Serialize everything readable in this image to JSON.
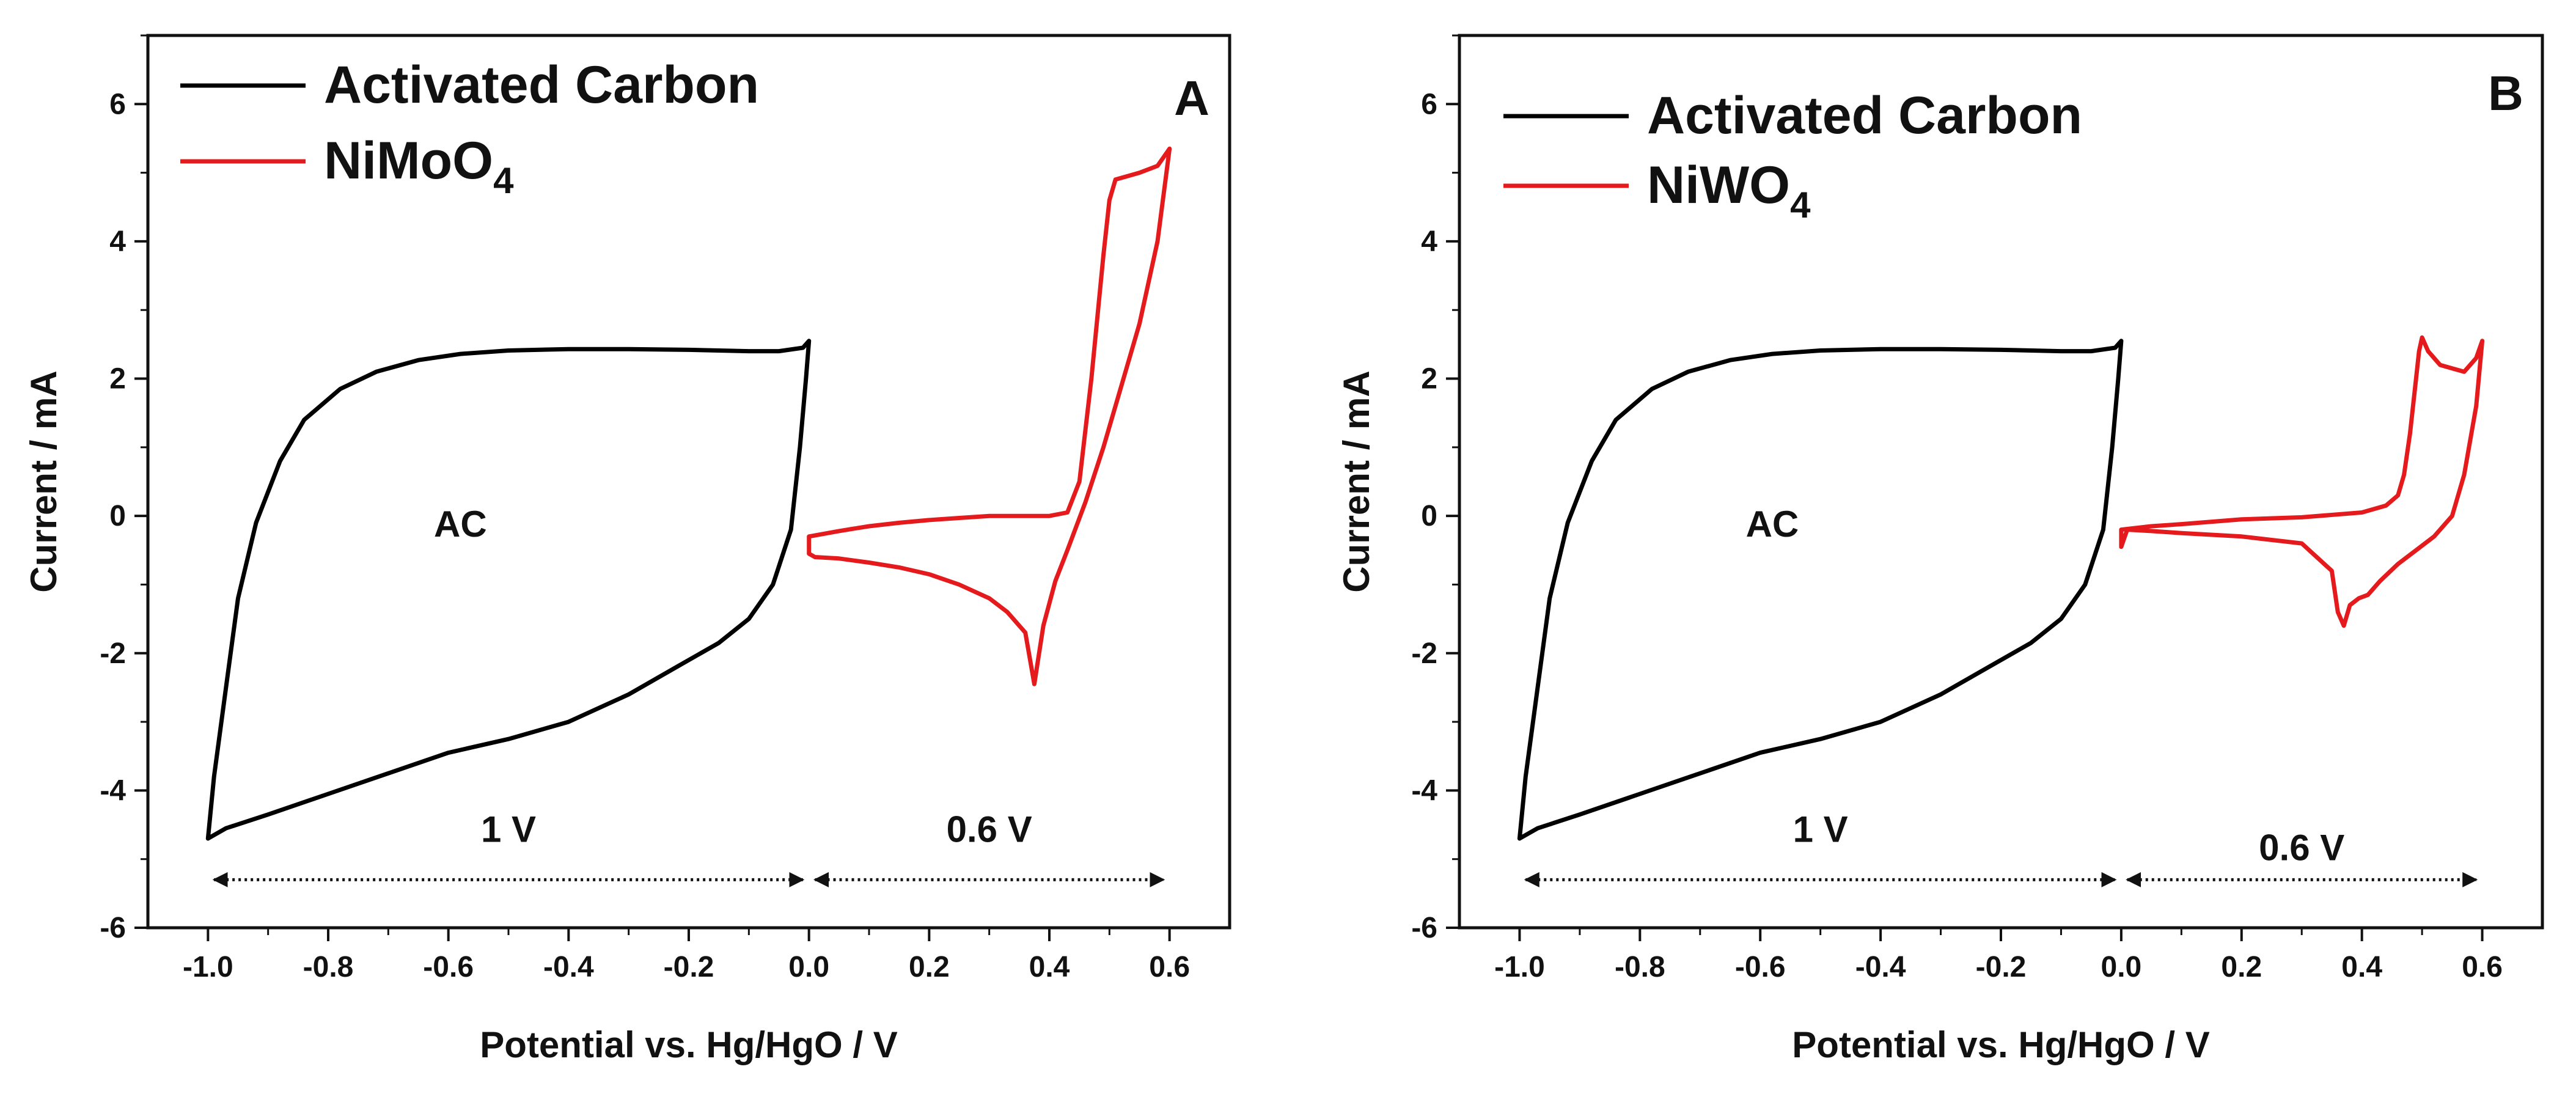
{
  "chart_data": [
    {
      "type": "line",
      "panel_label": "A",
      "xlabel": "Potential vs. Hg/HgO / V",
      "ylabel": "Current / mA",
      "xlim": [
        -1.1,
        0.7
      ],
      "ylim": [
        -6,
        7
      ],
      "xticks": [
        -1.0,
        -0.8,
        -0.6,
        -0.4,
        -0.2,
        0.0,
        0.2,
        0.4,
        0.6
      ],
      "xtick_labels": [
        "-1.0",
        "-0.8",
        "-0.6",
        "-0.4",
        "-0.2",
        "0.0",
        "0.2",
        "0.4",
        "0.6"
      ],
      "yticks": [
        -6,
        -4,
        -2,
        0,
        2,
        4,
        6
      ],
      "ytick_labels": [
        "-6",
        "-4",
        "-2",
        "0",
        "2",
        "4",
        "6"
      ],
      "grid": false,
      "legend_position": "top-left",
      "annotations": {
        "region_label": "AC",
        "window_left": "1 V",
        "window_right": "0.6 V"
      },
      "series": [
        {
          "name": "Activated Carbon",
          "legend_main": "Activated Carbon",
          "legend_sub": "",
          "color": "#000000",
          "x": [
            -1.0,
            -0.99,
            -0.97,
            -0.95,
            -0.92,
            -0.88,
            -0.84,
            -0.78,
            -0.72,
            -0.65,
            -0.58,
            -0.5,
            -0.4,
            -0.3,
            -0.2,
            -0.1,
            -0.05,
            -0.01,
            0.0,
            -0.005,
            -0.015,
            -0.03,
            -0.06,
            -0.1,
            -0.15,
            -0.22,
            -0.3,
            -0.4,
            -0.5,
            -0.6,
            -0.7,
            -0.8,
            -0.9,
            -0.97,
            -1.0
          ],
          "y": [
            -4.7,
            -3.8,
            -2.5,
            -1.2,
            -0.1,
            0.8,
            1.4,
            1.85,
            2.1,
            2.27,
            2.36,
            2.41,
            2.43,
            2.43,
            2.42,
            2.4,
            2.4,
            2.45,
            2.55,
            2.0,
            1.0,
            -0.2,
            -1.0,
            -1.5,
            -1.85,
            -2.2,
            -2.6,
            -3.0,
            -3.25,
            -3.45,
            -3.75,
            -4.05,
            -4.35,
            -4.55,
            -4.7
          ]
        },
        {
          "name": "NiMoO4",
          "legend_main": "NiMoO",
          "legend_sub": "4",
          "color": "#e41a1c",
          "x": [
            0.0,
            0.05,
            0.1,
            0.15,
            0.2,
            0.25,
            0.3,
            0.35,
            0.4,
            0.43,
            0.45,
            0.47,
            0.49,
            0.5,
            0.51,
            0.53,
            0.55,
            0.58,
            0.6,
            0.58,
            0.55,
            0.52,
            0.49,
            0.46,
            0.43,
            0.41,
            0.39,
            0.375,
            0.36,
            0.33,
            0.3,
            0.25,
            0.2,
            0.15,
            0.1,
            0.05,
            0.01,
            0.0,
            0.0
          ],
          "y": [
            -0.3,
            -0.22,
            -0.15,
            -0.1,
            -0.06,
            -0.03,
            0.0,
            0.0,
            0.0,
            0.05,
            0.5,
            2.0,
            3.8,
            4.6,
            4.9,
            4.95,
            5.0,
            5.1,
            5.35,
            4.0,
            2.8,
            1.9,
            1.0,
            0.2,
            -0.5,
            -0.95,
            -1.6,
            -2.45,
            -1.7,
            -1.4,
            -1.2,
            -1.0,
            -0.85,
            -0.75,
            -0.68,
            -0.62,
            -0.6,
            -0.55,
            -0.3
          ]
        }
      ]
    },
    {
      "type": "line",
      "panel_label": "B",
      "xlabel": "Potential vs. Hg/HgO / V",
      "ylabel": "Current / mA",
      "xlim": [
        -1.1,
        0.7
      ],
      "ylim": [
        -6,
        7
      ],
      "xticks": [
        -1.0,
        -0.8,
        -0.6,
        -0.4,
        -0.2,
        0.0,
        0.2,
        0.4,
        0.6
      ],
      "xtick_labels": [
        "-1.0",
        "-0.8",
        "-0.6",
        "-0.4",
        "-0.2",
        "0.0",
        "0.2",
        "0.4",
        "0.6"
      ],
      "yticks": [
        -6,
        -4,
        -2,
        0,
        2,
        4,
        6
      ],
      "ytick_labels": [
        "-6",
        "-4",
        "-2",
        "0",
        "2",
        "4",
        "6"
      ],
      "grid": false,
      "legend_position": "top-left",
      "annotations": {
        "region_label": "AC",
        "window_left": "1 V",
        "window_right": "0.6 V"
      },
      "series": [
        {
          "name": "Activated Carbon",
          "legend_main": "Activated Carbon",
          "legend_sub": "",
          "color": "#000000",
          "x": [
            -1.0,
            -0.99,
            -0.97,
            -0.95,
            -0.92,
            -0.88,
            -0.84,
            -0.78,
            -0.72,
            -0.65,
            -0.58,
            -0.5,
            -0.4,
            -0.3,
            -0.2,
            -0.1,
            -0.05,
            -0.01,
            0.0,
            -0.005,
            -0.015,
            -0.03,
            -0.06,
            -0.1,
            -0.15,
            -0.22,
            -0.3,
            -0.4,
            -0.5,
            -0.6,
            -0.7,
            -0.8,
            -0.9,
            -0.97,
            -1.0
          ],
          "y": [
            -4.7,
            -3.8,
            -2.5,
            -1.2,
            -0.1,
            0.8,
            1.4,
            1.85,
            2.1,
            2.27,
            2.36,
            2.41,
            2.43,
            2.43,
            2.42,
            2.4,
            2.4,
            2.45,
            2.55,
            2.0,
            1.0,
            -0.2,
            -1.0,
            -1.5,
            -1.85,
            -2.2,
            -2.6,
            -3.0,
            -3.25,
            -3.45,
            -3.75,
            -4.05,
            -4.35,
            -4.55,
            -4.7
          ]
        },
        {
          "name": "NiWO4",
          "legend_main": "NiWO",
          "legend_sub": "4",
          "color": "#e41a1c",
          "x": [
            0.0,
            0.05,
            0.1,
            0.2,
            0.3,
            0.4,
            0.44,
            0.46,
            0.47,
            0.48,
            0.49,
            0.495,
            0.5,
            0.51,
            0.53,
            0.55,
            0.57,
            0.59,
            0.6,
            0.59,
            0.57,
            0.55,
            0.52,
            0.49,
            0.46,
            0.43,
            0.41,
            0.395,
            0.38,
            0.37,
            0.36,
            0.35,
            0.3,
            0.2,
            0.1,
            0.05,
            0.01,
            0.0,
            0.0
          ],
          "y": [
            -0.2,
            -0.15,
            -0.12,
            -0.05,
            -0.02,
            0.05,
            0.15,
            0.3,
            0.6,
            1.2,
            2.0,
            2.4,
            2.6,
            2.4,
            2.2,
            2.15,
            2.1,
            2.3,
            2.55,
            1.6,
            0.6,
            0.0,
            -0.3,
            -0.5,
            -0.7,
            -0.95,
            -1.15,
            -1.2,
            -1.3,
            -1.6,
            -1.4,
            -0.8,
            -0.4,
            -0.3,
            -0.25,
            -0.22,
            -0.2,
            -0.45,
            -0.2
          ]
        }
      ]
    }
  ]
}
